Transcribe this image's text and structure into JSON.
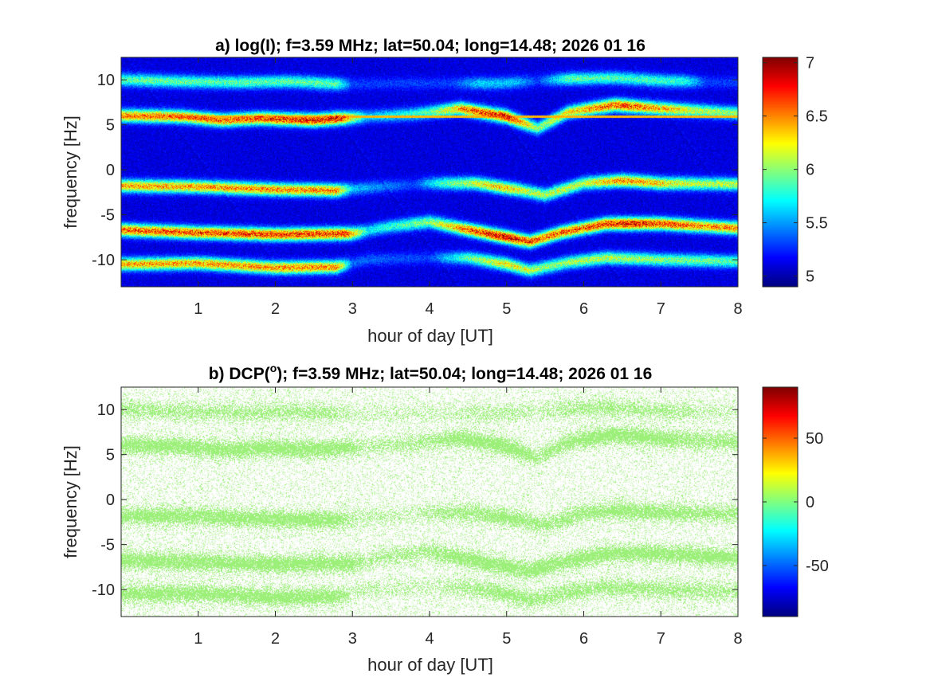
{
  "chart_data": [
    {
      "type": "heatmap",
      "panel": "a",
      "title": "a) log(I); f=3.59 MHz;  lat=50.04; long=14.48; 2026 01 16",
      "xlabel": "hour of day [UT]",
      "ylabel": "frequency [Hz]",
      "xlim": [
        0,
        8
      ],
      "ylim": [
        -13,
        12.5
      ],
      "x_ticks": [
        "1",
        "2",
        "3",
        "4",
        "5",
        "6",
        "7",
        "8"
      ],
      "x_tick_values": [
        1,
        2,
        3,
        4,
        5,
        6,
        7,
        8
      ],
      "y_ticks": [
        "10",
        "5",
        "0",
        "-5",
        "-10"
      ],
      "y_tick_values": [
        10,
        5,
        0,
        -5,
        -10
      ],
      "colorbar": {
        "colormap": "jet",
        "clim": [
          4.9,
          7.05
        ],
        "ticks": [
          "7",
          "6.5",
          "6",
          "5.5",
          "5"
        ],
        "tick_values": [
          7,
          6.5,
          6,
          5.5,
          5
        ]
      },
      "background_value": 5.1,
      "constant_line": {
        "frequency": 5.9,
        "value": 6.4
      },
      "bands": [
        {
          "name": "band +10 Hz",
          "frequency": [
            [
              0.0,
              10.0
            ],
            [
              0.8,
              9.8
            ],
            [
              1.5,
              9.7
            ],
            [
              2.2,
              9.8
            ],
            [
              2.9,
              9.5
            ],
            [
              3.6,
              9.6
            ],
            [
              4.3,
              9.6
            ],
            [
              4.9,
              9.6
            ],
            [
              5.8,
              10.1
            ],
            [
              6.4,
              10.2
            ],
            [
              7.0,
              9.9
            ],
            [
              7.8,
              9.7
            ]
          ],
          "intensity": [
            [
              0.0,
              5.9
            ],
            [
              2.8,
              5.9
            ],
            [
              3.0,
              5.3
            ],
            [
              4.3,
              5.3
            ],
            [
              4.6,
              5.6
            ],
            [
              5.1,
              5.6
            ],
            [
              5.4,
              5.3
            ],
            [
              5.8,
              5.9
            ],
            [
              7.3,
              5.8
            ],
            [
              7.6,
              5.3
            ],
            [
              8.0,
              5.3
            ]
          ]
        },
        {
          "name": "band +6 Hz",
          "frequency": [
            [
              0.0,
              6.0
            ],
            [
              0.8,
              5.9
            ],
            [
              1.3,
              5.5
            ],
            [
              1.8,
              5.7
            ],
            [
              2.5,
              5.5
            ],
            [
              3.0,
              5.8
            ],
            [
              3.8,
              6.2
            ],
            [
              4.4,
              6.8
            ],
            [
              5.0,
              5.9
            ],
            [
              5.4,
              4.6
            ],
            [
              5.8,
              6.4
            ],
            [
              6.4,
              7.2
            ],
            [
              7.0,
              6.8
            ],
            [
              8.0,
              6.3
            ]
          ],
          "intensity": [
            [
              0.0,
              6.5
            ],
            [
              1.5,
              6.6
            ],
            [
              2.8,
              6.8
            ],
            [
              3.2,
              5.6
            ],
            [
              4.0,
              5.9
            ],
            [
              4.5,
              6.6
            ],
            [
              5.0,
              6.8
            ],
            [
              5.4,
              6.0
            ],
            [
              6.0,
              6.4
            ],
            [
              6.5,
              6.7
            ],
            [
              7.5,
              6.1
            ],
            [
              8.0,
              6.0
            ]
          ]
        },
        {
          "name": "band -2 Hz",
          "frequency": [
            [
              0.0,
              -1.8
            ],
            [
              1.0,
              -1.9
            ],
            [
              2.0,
              -2.2
            ],
            [
              2.8,
              -2.3
            ],
            [
              3.2,
              -2.0
            ],
            [
              4.0,
              -1.5
            ],
            [
              4.6,
              -1.5
            ],
            [
              5.2,
              -2.3
            ],
            [
              5.5,
              -2.8
            ],
            [
              6.0,
              -1.5
            ],
            [
              6.5,
              -1.2
            ],
            [
              7.0,
              -1.5
            ],
            [
              8.0,
              -1.6
            ]
          ],
          "intensity": [
            [
              0.0,
              6.4
            ],
            [
              2.8,
              6.5
            ],
            [
              3.0,
              5.6
            ],
            [
              3.8,
              5.3
            ],
            [
              4.2,
              5.9
            ],
            [
              5.0,
              6.4
            ],
            [
              5.3,
              6.1
            ],
            [
              6.0,
              6.1
            ],
            [
              6.5,
              6.5
            ],
            [
              7.5,
              6.1
            ],
            [
              8.0,
              6.1
            ]
          ]
        },
        {
          "name": "band -7 Hz",
          "frequency": [
            [
              0.0,
              -6.7
            ],
            [
              1.0,
              -7.0
            ],
            [
              2.0,
              -7.2
            ],
            [
              3.0,
              -7.1
            ],
            [
              3.5,
              -6.3
            ],
            [
              4.0,
              -5.8
            ],
            [
              4.4,
              -6.5
            ],
            [
              5.0,
              -7.5
            ],
            [
              5.3,
              -8.0
            ],
            [
              5.7,
              -7.0
            ],
            [
              6.3,
              -6.0
            ],
            [
              7.0,
              -6.0
            ],
            [
              8.0,
              -6.5
            ]
          ],
          "intensity": [
            [
              0.0,
              6.6
            ],
            [
              2.9,
              6.7
            ],
            [
              3.2,
              5.7
            ],
            [
              4.0,
              6.0
            ],
            [
              4.5,
              6.6
            ],
            [
              5.0,
              6.9
            ],
            [
              5.3,
              6.6
            ],
            [
              6.0,
              6.6
            ],
            [
              6.6,
              6.8
            ],
            [
              7.5,
              6.5
            ],
            [
              8.0,
              6.5
            ]
          ]
        },
        {
          "name": "band -11 Hz",
          "frequency": [
            [
              0.0,
              -10.5
            ],
            [
              1.0,
              -10.4
            ],
            [
              2.0,
              -10.9
            ],
            [
              2.8,
              -10.8
            ],
            [
              3.2,
              -10.0
            ],
            [
              4.0,
              -9.8
            ],
            [
              4.5,
              -9.8
            ],
            [
              5.0,
              -10.5
            ],
            [
              5.3,
              -11.2
            ],
            [
              5.8,
              -10.3
            ],
            [
              6.3,
              -9.8
            ],
            [
              7.0,
              -10.0
            ],
            [
              8.0,
              -10.2
            ]
          ],
          "intensity": [
            [
              0.0,
              6.4
            ],
            [
              2.8,
              6.5
            ],
            [
              3.0,
              5.4
            ],
            [
              4.0,
              5.3
            ],
            [
              4.5,
              5.9
            ],
            [
              5.0,
              6.3
            ],
            [
              5.5,
              6.0
            ],
            [
              6.2,
              6.1
            ],
            [
              7.0,
              6.0
            ],
            [
              8.0,
              5.9
            ]
          ]
        }
      ]
    },
    {
      "type": "heatmap",
      "panel": "b",
      "title": "b) DCP(",
      "title_superscript": "o",
      "title_rest": "); f=3.59 MHz;  lat=50.04; long=14.48; 2026 01 16",
      "xlabel": "hour of day [UT]",
      "ylabel": "frequency [Hz]",
      "xlim": [
        0,
        8
      ],
      "ylim": [
        -13,
        12.5
      ],
      "x_ticks": [
        "1",
        "2",
        "3",
        "4",
        "5",
        "6",
        "7",
        "8"
      ],
      "x_tick_values": [
        1,
        2,
        3,
        4,
        5,
        6,
        7,
        8
      ],
      "y_ticks": [
        "10",
        "5",
        "0",
        "-5",
        "-10"
      ],
      "y_tick_values": [
        10,
        5,
        0,
        -5,
        -10
      ],
      "colorbar": {
        "colormap": "jet",
        "clim": [
          -90,
          90
        ],
        "ticks": [
          "50",
          "0",
          "-50"
        ],
        "tick_values": [
          50,
          0,
          -50
        ]
      },
      "dominant_value": 0,
      "description_color": "#9cf07a",
      "note": "bands follow panel a frequencies"
    }
  ]
}
